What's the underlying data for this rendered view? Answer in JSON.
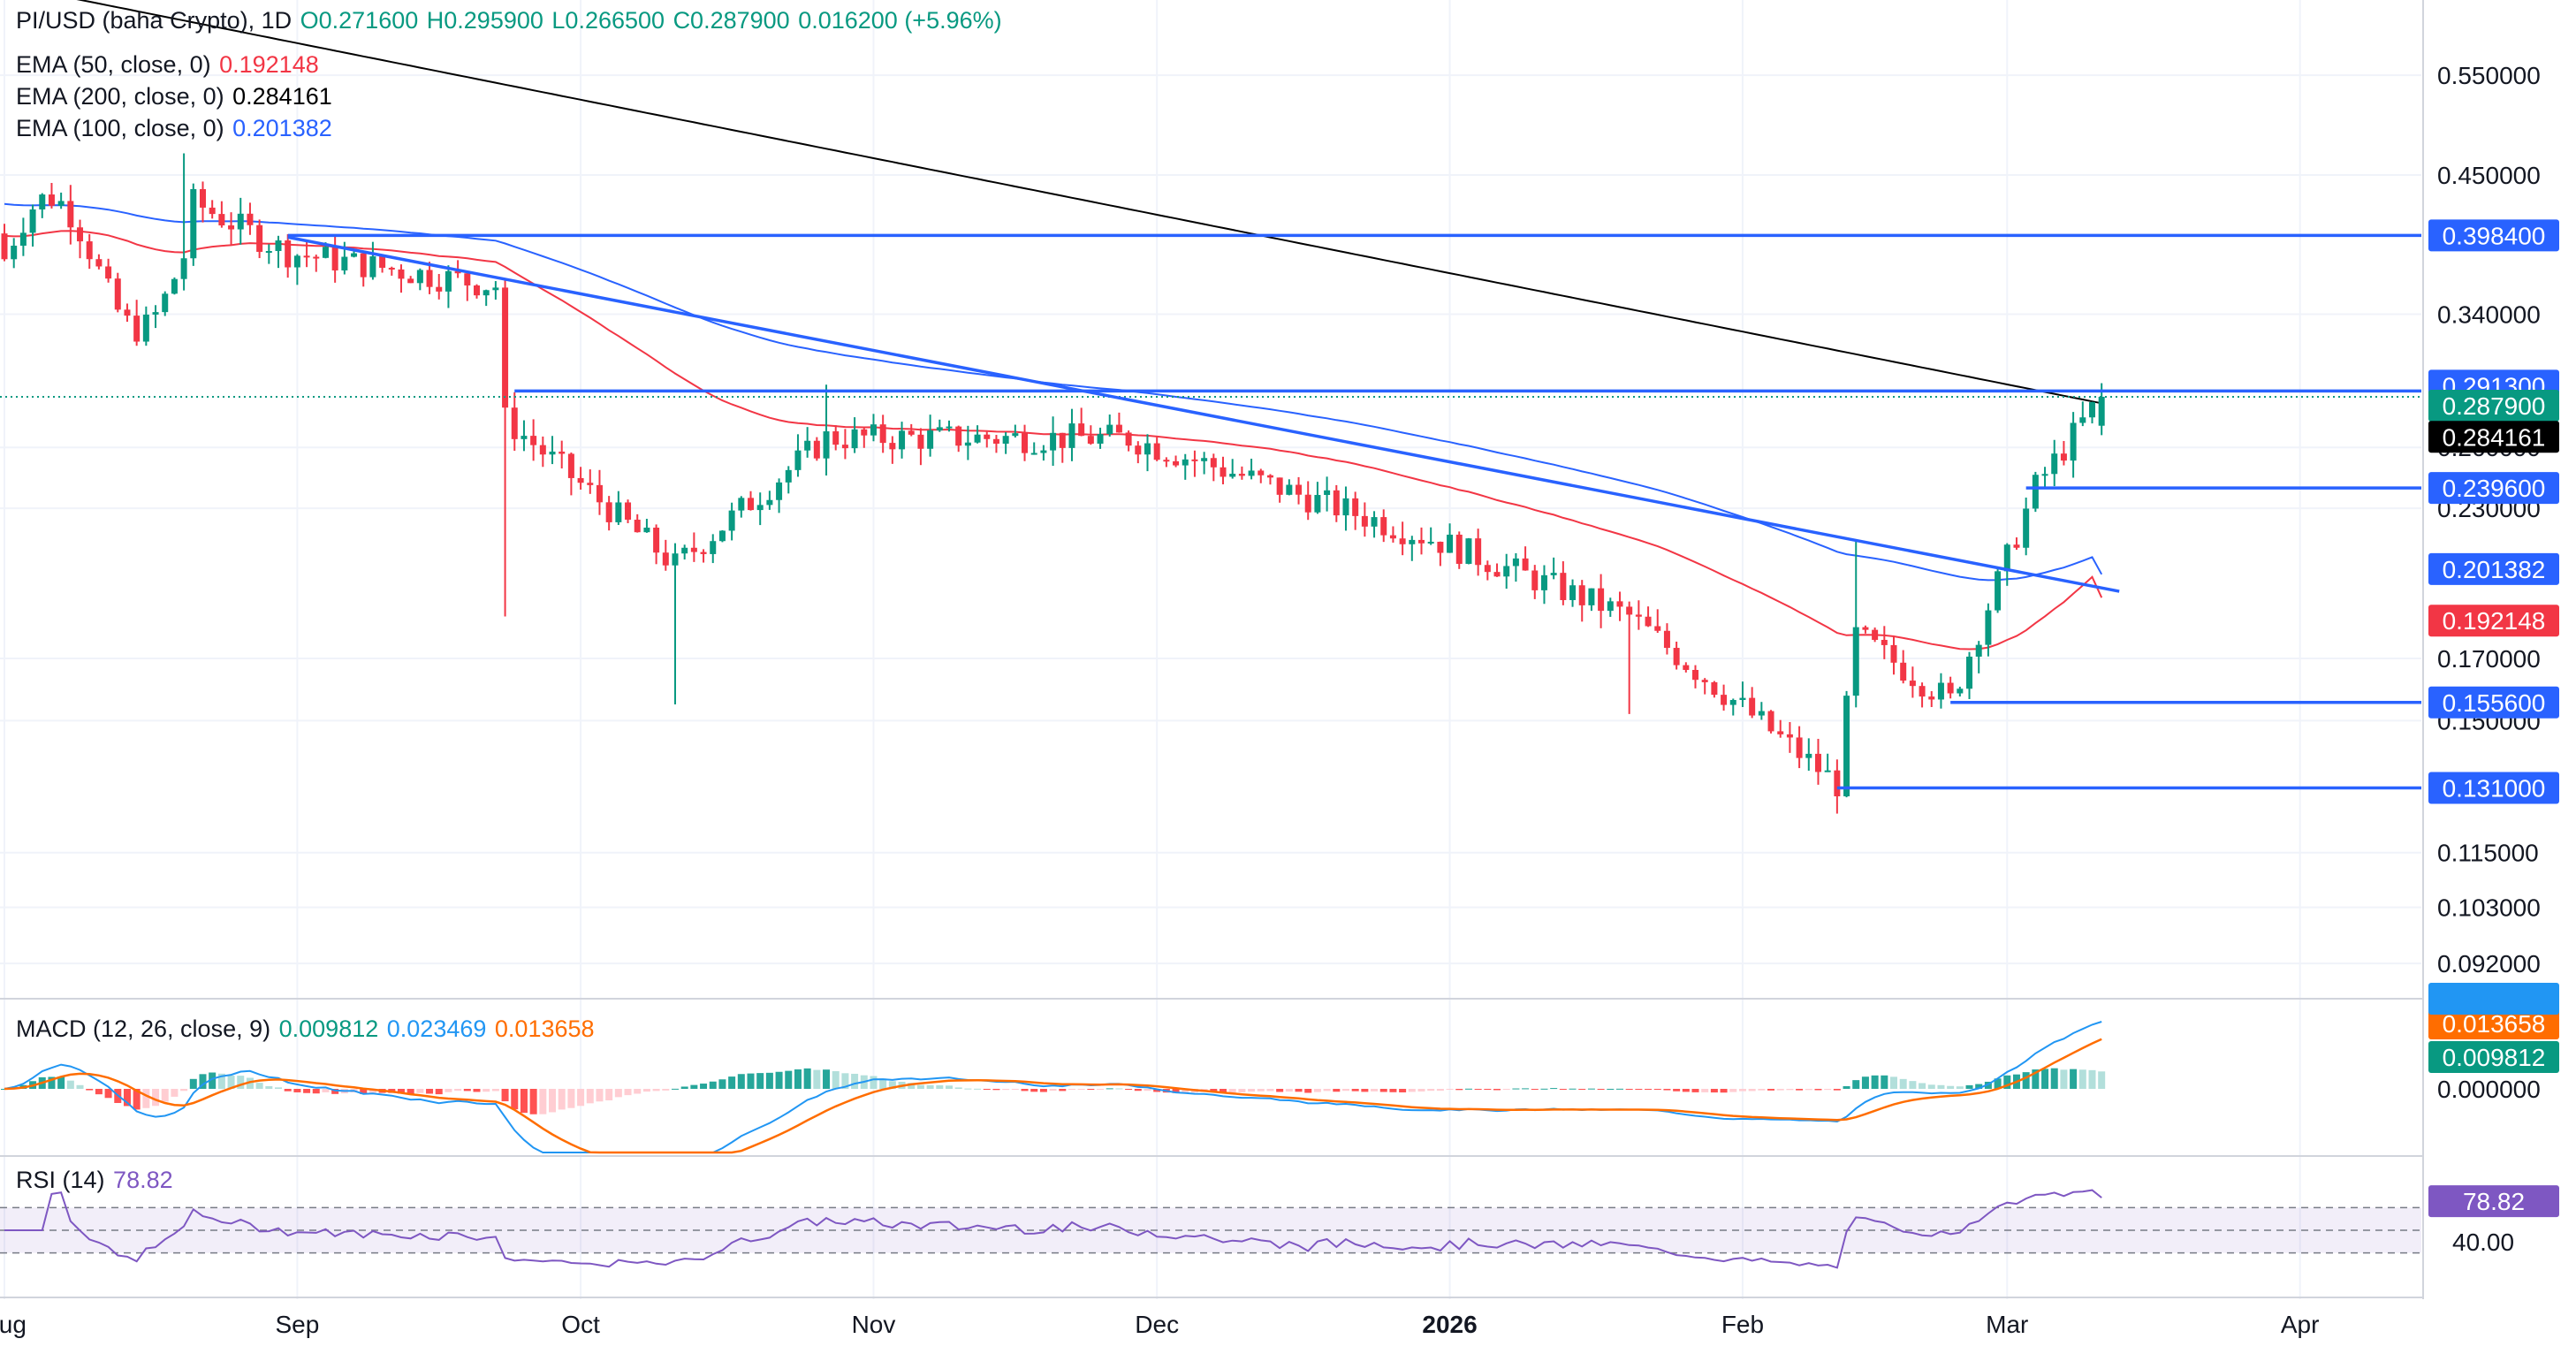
{
  "header": {
    "symbol": "PI/USD (baha Crypto), 1D",
    "open": "O0.271600",
    "high": "H0.295900",
    "low": "L0.266500",
    "close": "C0.287900",
    "change": "0.016200 (+5.96%)"
  },
  "indicators": {
    "ema50": {
      "label": "EMA (50, close, 0)",
      "value": "0.192148",
      "color": "#f23645"
    },
    "ema200": {
      "label": "EMA (200, close, 0)",
      "value": "0.284161",
      "color": "#000000"
    },
    "ema100": {
      "label": "EMA (100, close, 0)",
      "value": "0.201382",
      "color": "#2962ff"
    },
    "macd": {
      "label": "MACD (12, 26, close, 9)",
      "hist": "0.009812",
      "macd": "0.023469",
      "signal": "0.013658"
    },
    "rsi": {
      "label": "RSI (14)",
      "value": "78.82"
    }
  },
  "colors": {
    "up": "#089981",
    "down": "#f23645",
    "level_line": "#2962ff",
    "ema50": "#f23645",
    "ema100": "#2962ff",
    "ema200": "#000000",
    "macd_line": "#2196f3",
    "signal_line": "#ff6d00",
    "rsi_line": "#7e57c2"
  },
  "price_axis": {
    "ticks": [
      "0.550000",
      "0.450000",
      "0.340000",
      "0.260000",
      "0.230000",
      "0.170000",
      "0.150000",
      "0.115000",
      "0.103000",
      "0.092000"
    ],
    "tick_values": [
      0.55,
      0.45,
      0.34,
      0.26,
      0.23,
      0.17,
      0.15,
      0.115,
      0.103,
      0.092
    ],
    "scale": "log",
    "range": [
      0.086,
      0.64
    ]
  },
  "macd_axis": {
    "ticks": [
      "0.000000"
    ]
  },
  "rsi_axis": {
    "ticks": [
      "40.00"
    ],
    "bands": [
      30,
      70
    ]
  },
  "time_axis": {
    "labels": [
      "Aug",
      "Sep",
      "Oct",
      "Nov",
      "Dec",
      "2026",
      "Feb",
      "Mar",
      "Apr"
    ],
    "dates": [
      "2025-08-01",
      "2025-09-01",
      "2025-10-01",
      "2025-11-01",
      "2025-12-01",
      "2026-01-01",
      "2026-02-01",
      "2026-03-01",
      "2026-04-01"
    ]
  },
  "levels": [
    {
      "price": 0.3984,
      "label": "0.398400",
      "from": "2025-08-31"
    },
    {
      "price": 0.2913,
      "label": "0.291300",
      "from": "2025-09-24"
    },
    {
      "price": 0.2396,
      "label": "0.239600",
      "from": "2026-03-03"
    },
    {
      "price": 0.1556,
      "label": "0.155600",
      "from": "2026-02-23"
    },
    {
      "price": 0.131,
      "label": "0.131000",
      "from": "2026-02-11"
    }
  ],
  "axis_labels": [
    {
      "text": "0.398400",
      "kind": "level"
    },
    {
      "text": "0.291300",
      "kind": "level"
    },
    {
      "text": "0.287900",
      "kind": "last"
    },
    {
      "text": "0.284161",
      "kind": "ema200"
    },
    {
      "text": "0.239600",
      "kind": "level"
    },
    {
      "text": "0.201382",
      "kind": "ema100"
    },
    {
      "text": "0.192148",
      "kind": "ema50"
    },
    {
      "text": "0.155600",
      "kind": "level"
    },
    {
      "text": "0.131000",
      "kind": "level"
    }
  ],
  "chart_data": {
    "type": "candlestick",
    "symbol": "PI/USD",
    "timeframe": "1D",
    "y_scale": "log",
    "last_close": 0.2879,
    "trendlines": [
      {
        "name": "descending",
        "from": {
          "x": "2025-08-31",
          "y": 0.397
        },
        "to": {
          "x": "2026-03-11",
          "y": 0.196
        }
      }
    ],
    "key_points": [
      {
        "date": "2025-08-20",
        "close": 0.43
      },
      {
        "date": "2025-08-31",
        "close": 0.385
      },
      {
        "date": "2025-09-22",
        "close": 0.36
      },
      {
        "date": "2025-09-23",
        "close": 0.275
      },
      {
        "date": "2025-10-11",
        "close": 0.205
      },
      {
        "date": "2025-10-27",
        "close": 0.265
      },
      {
        "date": "2025-11-28",
        "close": 0.265
      },
      {
        "date": "2025-12-31",
        "close": 0.215
      },
      {
        "date": "2026-01-20",
        "close": 0.185
      },
      {
        "date": "2026-02-11",
        "close": 0.132
      },
      {
        "date": "2026-02-13",
        "close": 0.178
      },
      {
        "date": "2026-02-23",
        "close": 0.156
      },
      {
        "date": "2026-03-04",
        "close": 0.24
      },
      {
        "date": "2026-03-11",
        "close": 0.2879
      }
    ],
    "ema50_end": 0.192148,
    "ema100_end": 0.201382,
    "ema200_end": 0.284161,
    "macd_end": {
      "macd": 0.023469,
      "signal": 0.013658,
      "hist": 0.009812
    },
    "rsi_end": 78.82
  }
}
